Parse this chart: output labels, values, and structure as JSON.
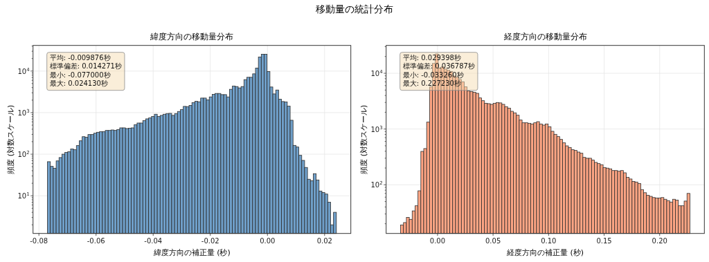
{
  "chart_data": [
    {
      "type": "histogram",
      "title": "緯度方向の移動量分布",
      "xlabel": "緯度方向の補正量 (秒)",
      "ylabel": "頻度 (対数スケール)",
      "color": "#6f9fc9",
      "log": "y",
      "grid": true,
      "annotations": [
        "移動量の統計分布",
        "平均: -0.009876秒",
        "標準偏差: 0.014271秒",
        "最小: -0.077000秒",
        "最大: 0.024130秒"
      ],
      "bins": [
        -0.077,
        -0.0759887,
        -0.0749774,
        -0.0739661,
        -0.0729548,
        -0.0719435,
        -0.0709322,
        -0.0699209,
        -0.0689096,
        -0.0678983,
        -0.066887,
        -0.0658757,
        -0.0648644,
        -0.0638531,
        -0.0628418,
        -0.0618305,
        -0.0608192,
        -0.0598079,
        -0.0587966,
        -0.0577853,
        -0.056774,
        -0.0557627,
        -0.0547514,
        -0.0537401,
        -0.0527288,
        -0.0517175,
        -0.0507062,
        -0.0496949,
        -0.0486836,
        -0.0476723,
        -0.046661,
        -0.0456497,
        -0.0446384,
        -0.0436271,
        -0.0426158,
        -0.0416045,
        -0.0405932,
        -0.0395819,
        -0.0385706,
        -0.0375593,
        -0.036548,
        -0.0355367,
        -0.0345254,
        -0.0335141,
        -0.0325028,
        -0.0314915,
        -0.0304802,
        -0.0294689,
        -0.0284576,
        -0.0274463,
        -0.026435,
        -0.0254237,
        -0.0244124,
        -0.0234011,
        -0.0223898,
        -0.0213785,
        -0.0203672,
        -0.0193559,
        -0.0183446,
        -0.0173333,
        -0.016322,
        -0.0153107,
        -0.0142994,
        -0.0132881,
        -0.0122768,
        -0.0112655,
        -0.0102542,
        -0.0092429,
        -0.0082316,
        -0.0072203,
        -0.006209,
        -0.0051977,
        -0.0041864,
        -0.0031751,
        -0.0021638,
        -0.0011525,
        -0.0001412,
        0.0008701,
        0.0018814,
        0.0028927,
        0.003904,
        0.0049153,
        0.0059266,
        0.0069379,
        0.0079492,
        0.0089605,
        0.0099718,
        0.0109831,
        0.0119944,
        0.0130057,
        0.014017,
        0.0150283,
        0.0160396,
        0.0170509,
        0.0180622,
        0.0190735,
        0.0200848,
        0.0210961,
        0.0221074,
        0.0231187,
        0.02413
      ],
      "values": [
        66,
        51,
        46,
        69,
        83,
        100,
        110,
        115,
        134,
        128,
        161,
        210,
        264,
        255,
        297,
        297,
        320,
        337,
        350,
        350,
        373,
        373,
        383,
        373,
        393,
        430,
        430,
        414,
        420,
        430,
        514,
        562,
        562,
        640,
        708,
        745,
        805,
        915,
        805,
        858,
        915,
        950,
        960,
        858,
        950,
        1066,
        1180,
        1413,
        1395,
        1487,
        1733,
        1871,
        1823,
        2239,
        2239,
        2022,
        2387,
        2748,
        2892,
        2892,
        2712,
        2712,
        2387,
        3641,
        4355,
        4245,
        3930,
        4245,
        6223,
        7079,
        7079,
        8577,
        11810,
        21800,
        25450,
        25450,
        9750,
        4140,
        2818,
        3500,
        2100,
        1848,
        1803,
        1432,
        656,
        163,
        149,
        94,
        71,
        48,
        25,
        23,
        34,
        24,
        13,
        12,
        11,
        7,
        2,
        4
      ],
      "xlim": [
        -0.08206,
        0.02919
      ],
      "ylim": [
        1.24,
        41400
      ],
      "xticks": [
        -0.08,
        -0.06,
        -0.04,
        -0.02,
        {
          "value": 0,
          "label": "0.00"
        },
        0.02
      ],
      "yticks": [
        {
          "value": 2,
          "label": null
        },
        {
          "value": 3,
          "label": null
        },
        {
          "value": 4,
          "label": null
        },
        {
          "value": 5,
          "label": null
        },
        {
          "value": 6,
          "label": null
        },
        {
          "value": 7,
          "label": null
        },
        {
          "value": 8,
          "label": null
        },
        {
          "value": 9,
          "label": null
        },
        {
          "value": 10,
          "label": "10$^{1}$"
        },
        {
          "value": 20,
          "label": null
        },
        {
          "value": 30,
          "label": null
        },
        {
          "value": 40,
          "label": null
        },
        {
          "value": 50,
          "label": null
        },
        {
          "value": 60,
          "label": null
        },
        {
          "value": 70,
          "label": null
        },
        {
          "value": 80,
          "label": null
        },
        {
          "value": 90,
          "label": null
        },
        {
          "value": 100,
          "label": "10$^{2}$"
        },
        {
          "value": 200,
          "label": null
        },
        {
          "value": 300,
          "label": null
        },
        {
          "value": 400,
          "label": null
        },
        {
          "value": 500,
          "label": null
        },
        {
          "value": 600,
          "label": null
        },
        {
          "value": 700,
          "label": null
        },
        {
          "value": 800,
          "label": null
        },
        {
          "value": 900,
          "label": null
        },
        {
          "value": 1000,
          "label": "10$^{3}$"
        },
        {
          "value": 2000,
          "label": null
        },
        {
          "value": 3000,
          "label": null
        },
        {
          "value": 4000,
          "label": null
        },
        {
          "value": 5000,
          "label": null
        },
        {
          "value": 6000,
          "label": null
        },
        {
          "value": 7000,
          "label": null
        },
        {
          "value": 8000,
          "label": null
        },
        {
          "value": 9000,
          "label": null
        },
        {
          "value": 10000,
          "label": "10$^{4}$"
        },
        {
          "value": 20000,
          "label": null
        },
        {
          "value": 30000,
          "label": null
        },
        {
          "value": 40000,
          "label": null
        }
      ]
    },
    {
      "type": "histogram",
      "title": "経度方向の移動量分布",
      "xlabel": "経度方向の補正量 (秒)",
      "ylabel": "頻度 (対数スケール)",
      "color": "#ffa584",
      "log": "y",
      "grid": true,
      "annotations": [
        "平均: 0.029398秒",
        "標準偏差: 0.036787秒",
        "最小: -0.033260秒",
        "最大: 0.227230秒"
      ],
      "bins": [
        -0.03326,
        -0.0306551,
        -0.0280502,
        -0.0254453,
        -0.0228404,
        -0.0202355,
        -0.0176306,
        -0.0150257,
        -0.0124208,
        -0.0098159,
        -0.007211,
        -0.0046061,
        -0.0020012,
        0.0006037,
        0.0032086,
        0.0058135,
        0.0084184,
        0.0110233,
        0.0136282,
        0.0162331,
        0.018838,
        0.0214429,
        0.0240478,
        0.0266527,
        0.0292576,
        0.0318625,
        0.0344674,
        0.0370723,
        0.0396772,
        0.0422821,
        0.044887,
        0.0474919,
        0.0500968,
        0.0527017,
        0.0553066,
        0.0579115,
        0.0605164,
        0.0631213,
        0.0657262,
        0.0683311,
        0.070936,
        0.0735409,
        0.0761458,
        0.0787507,
        0.0813556,
        0.0839605,
        0.0865654,
        0.0891703,
        0.0917752,
        0.0943801,
        0.096985,
        0.0995899,
        0.1021948,
        0.1047997,
        0.1074046,
        0.1100095,
        0.1126144,
        0.1152193,
        0.1178242,
        0.1204291,
        0.123034,
        0.1256389,
        0.1282438,
        0.1308487,
        0.1334536,
        0.1360585,
        0.1386634,
        0.1412683,
        0.1438732,
        0.1464781,
        0.149083,
        0.1516879,
        0.1542928,
        0.1568977,
        0.1595026,
        0.1621075,
        0.1647124,
        0.1673173,
        0.1699222,
        0.1725271,
        0.175132,
        0.1777369,
        0.1803418,
        0.1829467,
        0.1855516,
        0.1881565,
        0.1907614,
        0.1933663,
        0.1959712,
        0.1985761,
        0.201181,
        0.2037859,
        0.2063908,
        0.2089957,
        0.2116006,
        0.2142055,
        0.2168104,
        0.2194153,
        0.2220202,
        0.2246251,
        0.22723
      ],
      "values": [
        19,
        21,
        26,
        24,
        34,
        42,
        78,
        397,
        446,
        1330,
        5700,
        15000,
        22200,
        12400,
        13000,
        11900,
        11300,
        10800,
        8930,
        8500,
        7730,
        7040,
        5700,
        4800,
        4710,
        4580,
        4370,
        3610,
        3220,
        2900,
        2850,
        2770,
        2900,
        2990,
        2940,
        2770,
        2520,
        2360,
        2080,
        1950,
        1770,
        1450,
        1293,
        1293,
        1268,
        1233,
        1293,
        1355,
        1233,
        1175,
        1233,
        1100,
        910,
        804,
        731,
        652,
        565,
        499,
        467,
        425,
        413,
        386,
        368,
        310,
        299,
        299,
        277,
        252,
        240,
        229,
        204,
        199,
        193,
        180,
        180,
        175,
        180,
        164,
        136,
        127,
        115,
        112,
        105,
        82,
        72,
        65,
        62,
        59,
        58,
        58,
        59,
        55,
        52,
        49,
        55,
        53,
        42,
        42,
        51,
        70
      ],
      "xlim": [
        -0.04628,
        0.24025
      ],
      "ylim": [
        13.4,
        31600
      ],
      "xticks": [
        {
          "value": 0,
          "label": "0.00"
        },
        0.05,
        {
          "value": 0.1,
          "label": "0.10"
        },
        0.15,
        {
          "value": 0.2,
          "label": "0.20"
        }
      ],
      "yticks": [
        {
          "value": 20,
          "label": null
        },
        {
          "value": 30,
          "label": null
        },
        {
          "value": 40,
          "label": null
        },
        {
          "value": 50,
          "label": null
        },
        {
          "value": 60,
          "label": null
        },
        {
          "value": 70,
          "label": null
        },
        {
          "value": 80,
          "label": null
        },
        {
          "value": 90,
          "label": null
        },
        {
          "value": 100,
          "label": "10$^{2}$"
        },
        {
          "value": 200,
          "label": null
        },
        {
          "value": 300,
          "label": null
        },
        {
          "value": 400,
          "label": null
        },
        {
          "value": 500,
          "label": null
        },
        {
          "value": 600,
          "label": null
        },
        {
          "value": 700,
          "label": null
        },
        {
          "value": 800,
          "label": null
        },
        {
          "value": 900,
          "label": null
        },
        {
          "value": 1000,
          "label": "10$^{3}$"
        },
        {
          "value": 2000,
          "label": null
        },
        {
          "value": 3000,
          "label": null
        },
        {
          "value": 4000,
          "label": null
        },
        {
          "value": 5000,
          "label": null
        },
        {
          "value": 6000,
          "label": null
        },
        {
          "value": 7000,
          "label": null
        },
        {
          "value": 8000,
          "label": null
        },
        {
          "value": 9000,
          "label": null
        },
        {
          "value": 10000,
          "label": "10$^{4}$"
        },
        {
          "value": 20000,
          "label": null
        },
        {
          "value": 30000,
          "label": null
        }
      ]
    }
  ]
}
